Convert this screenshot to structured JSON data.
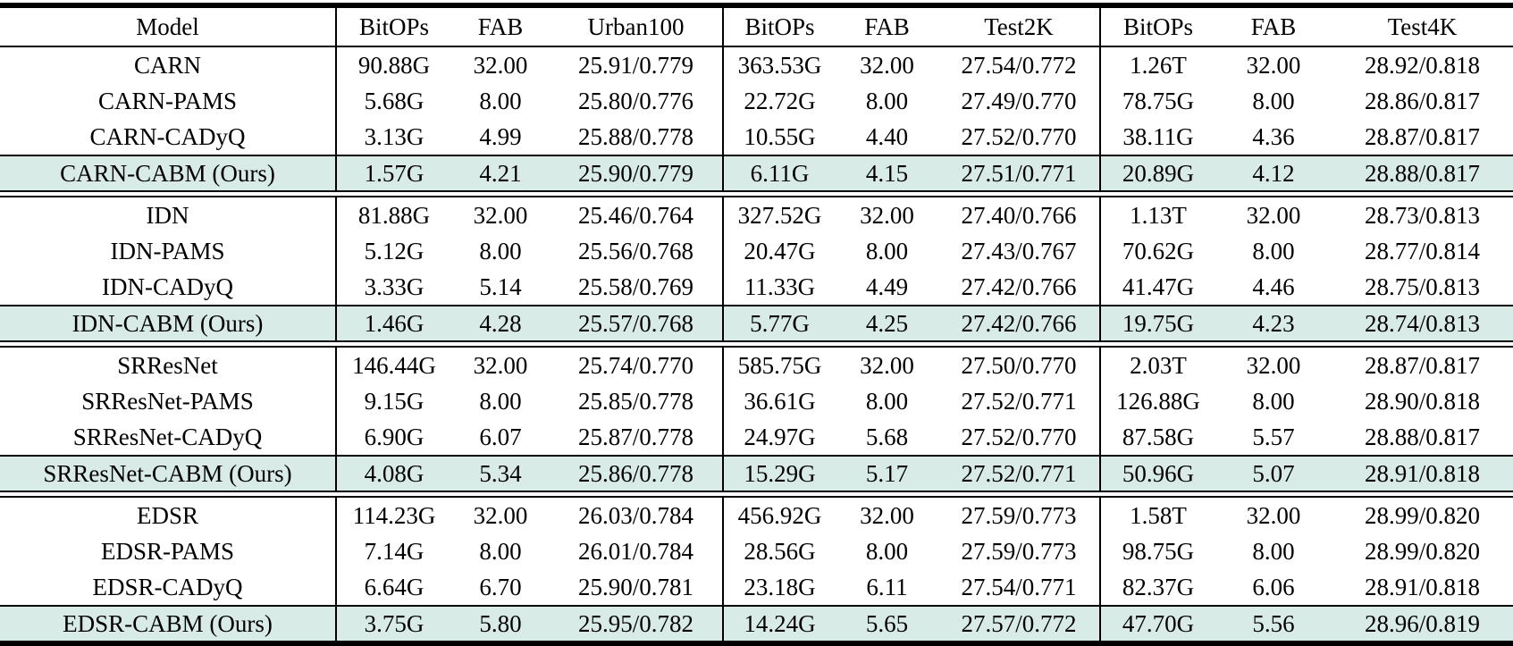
{
  "table": {
    "highlight_color": "#d9ebe7",
    "columns": [
      "Model",
      "BitOPs",
      "FAB",
      "Urban100",
      "BitOPs",
      "FAB",
      "Test2K",
      "BitOPs",
      "FAB",
      "Test4K"
    ],
    "groups": [
      {
        "rows": [
          {
            "model": "CARN",
            "highlight": false,
            "values": [
              "90.88G",
              "32.00",
              "25.91/0.779",
              "363.53G",
              "32.00",
              "27.54/0.772",
              "1.26T",
              "32.00",
              "28.92/0.818"
            ]
          },
          {
            "model": "CARN-PAMS",
            "highlight": false,
            "values": [
              "5.68G",
              "8.00",
              "25.80/0.776",
              "22.72G",
              "8.00",
              "27.49/0.770",
              "78.75G",
              "8.00",
              "28.86/0.817"
            ]
          },
          {
            "model": "CARN-CADyQ",
            "highlight": false,
            "values": [
              "3.13G",
              "4.99",
              "25.88/0.778",
              "10.55G",
              "4.40",
              "27.52/0.770",
              "38.11G",
              "4.36",
              "28.87/0.817"
            ]
          },
          {
            "model": "CARN-CABM (Ours)",
            "highlight": true,
            "values": [
              "1.57G",
              "4.21",
              "25.90/0.779",
              "6.11G",
              "4.15",
              "27.51/0.771",
              "20.89G",
              "4.12",
              "28.88/0.817"
            ]
          }
        ]
      },
      {
        "rows": [
          {
            "model": "IDN",
            "highlight": false,
            "values": [
              "81.88G",
              "32.00",
              "25.46/0.764",
              "327.52G",
              "32.00",
              "27.40/0.766",
              "1.13T",
              "32.00",
              "28.73/0.813"
            ]
          },
          {
            "model": "IDN-PAMS",
            "highlight": false,
            "values": [
              "5.12G",
              "8.00",
              "25.56/0.768",
              "20.47G",
              "8.00",
              "27.43/0.767",
              "70.62G",
              "8.00",
              "28.77/0.814"
            ]
          },
          {
            "model": "IDN-CADyQ",
            "highlight": false,
            "values": [
              "3.33G",
              "5.14",
              "25.58/0.769",
              "11.33G",
              "4.49",
              "27.42/0.766",
              "41.47G",
              "4.46",
              "28.75/0.813"
            ]
          },
          {
            "model": "IDN-CABM (Ours)",
            "highlight": true,
            "values": [
              "1.46G",
              "4.28",
              "25.57/0.768",
              "5.77G",
              "4.25",
              "27.42/0.766",
              "19.75G",
              "4.23",
              "28.74/0.813"
            ]
          }
        ]
      },
      {
        "rows": [
          {
            "model": "SRResNet",
            "highlight": false,
            "values": [
              "146.44G",
              "32.00",
              "25.74/0.770",
              "585.75G",
              "32.00",
              "27.50/0.770",
              "2.03T",
              "32.00",
              "28.87/0.817"
            ]
          },
          {
            "model": "SRResNet-PAMS",
            "highlight": false,
            "values": [
              "9.15G",
              "8.00",
              "25.85/0.778",
              "36.61G",
              "8.00",
              "27.52/0.771",
              "126.88G",
              "8.00",
              "28.90/0.818"
            ]
          },
          {
            "model": "SRResNet-CADyQ",
            "highlight": false,
            "values": [
              "6.90G",
              "6.07",
              "25.87/0.778",
              "24.97G",
              "5.68",
              "27.52/0.770",
              "87.58G",
              "5.57",
              "28.88/0.817"
            ]
          },
          {
            "model": "SRResNet-CABM (Ours)",
            "highlight": true,
            "values": [
              "4.08G",
              "5.34",
              "25.86/0.778",
              "15.29G",
              "5.17",
              "27.52/0.771",
              "50.96G",
              "5.07",
              "28.91/0.818"
            ]
          }
        ]
      },
      {
        "rows": [
          {
            "model": "EDSR",
            "highlight": false,
            "values": [
              "114.23G",
              "32.00",
              "26.03/0.784",
              "456.92G",
              "32.00",
              "27.59/0.773",
              "1.58T",
              "32.00",
              "28.99/0.820"
            ]
          },
          {
            "model": "EDSR-PAMS",
            "highlight": false,
            "values": [
              "7.14G",
              "8.00",
              "26.01/0.784",
              "28.56G",
              "8.00",
              "27.59/0.773",
              "98.75G",
              "8.00",
              "28.99/0.820"
            ]
          },
          {
            "model": "EDSR-CADyQ",
            "highlight": false,
            "values": [
              "6.64G",
              "6.70",
              "25.90/0.781",
              "23.18G",
              "6.11",
              "27.54/0.771",
              "82.37G",
              "6.06",
              "28.91/0.818"
            ]
          },
          {
            "model": "EDSR-CABM (Ours)",
            "highlight": true,
            "values": [
              "3.75G",
              "5.80",
              "25.95/0.782",
              "14.24G",
              "5.65",
              "27.57/0.772",
              "47.70G",
              "5.56",
              "28.96/0.819"
            ]
          }
        ]
      }
    ]
  }
}
